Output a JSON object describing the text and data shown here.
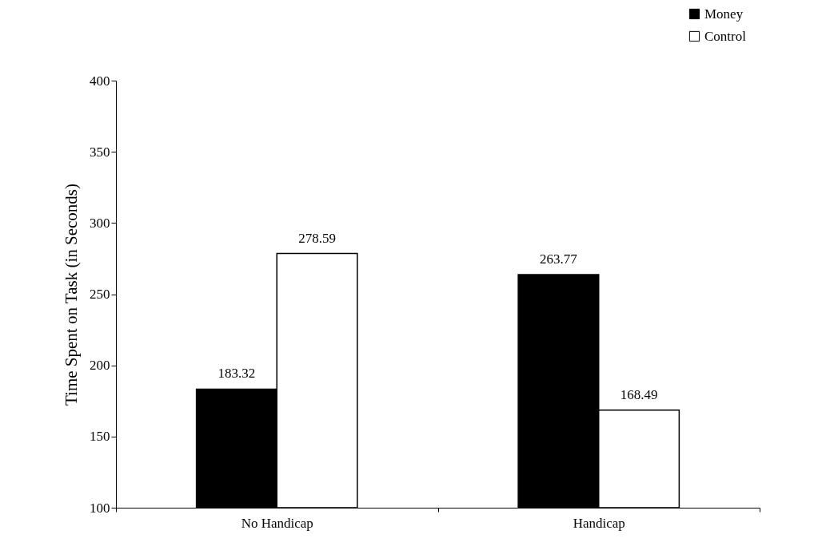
{
  "chart_data": {
    "type": "bar",
    "ylabel": "Time Spent on Task (in Seconds)",
    "categories": [
      "No Handicap",
      "Handicap"
    ],
    "series": [
      {
        "name": "Money",
        "color": "#000000",
        "values": [
          183.32,
          263.77
        ]
      },
      {
        "name": "Control",
        "color": "#ffffff",
        "values": [
          278.59,
          168.49
        ]
      }
    ],
    "ylim": [
      100,
      400
    ],
    "yticks": [
      100,
      150,
      200,
      250,
      300,
      350,
      400
    ],
    "data_labels": true,
    "legend": "top right",
    "grid": false
  }
}
